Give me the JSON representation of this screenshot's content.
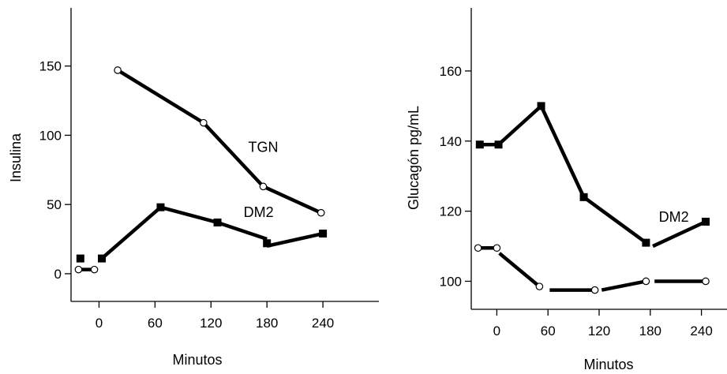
{
  "chart_data": [
    {
      "type": "line",
      "ylabel": "Insulina",
      "xlabel": "Minutos",
      "x_ticks": [
        0,
        60,
        120,
        180,
        240
      ],
      "y_ticks": [
        0,
        50,
        100,
        150
      ],
      "xlim": [
        -30,
        300
      ],
      "ylim": [
        -20,
        192
      ],
      "annotations": [
        {
          "text": "TGN",
          "x": 160,
          "y": 88
        },
        {
          "text": "DM2",
          "x": 155,
          "y": 41
        }
      ],
      "series": [
        {
          "marker": "circle-open",
          "segments": [
            [
              [
                -22,
                3
              ],
              [
                -5,
                3
              ]
            ],
            [
              [
                20,
                147
              ],
              [
                112,
                109
              ]
            ],
            [
              [
                112,
                109
              ],
              [
                176,
                63
              ]
            ],
            [
              [
                176,
                63
              ],
              [
                238,
                44
              ]
            ]
          ],
          "points": [
            [
              -22,
              3
            ],
            [
              -5,
              3
            ],
            [
              20,
              147
            ],
            [
              112,
              109
            ],
            [
              176,
              63
            ],
            [
              238,
              44
            ]
          ]
        },
        {
          "marker": "square-filled",
          "segments": [
            [
              [
                -20,
                11
              ],
              [
                -20,
                11
              ]
            ],
            [
              [
                3,
                11
              ],
              [
                66,
                48
              ]
            ],
            [
              [
                66,
                48
              ],
              [
                127,
                37
              ]
            ],
            [
              [
                127,
                37
              ],
              [
                180,
                25
              ]
            ],
            [
              [
                180,
                20
              ],
              [
                240,
                29
              ]
            ]
          ],
          "points": [
            [
              -20,
              11
            ],
            [
              3,
              11
            ],
            [
              66,
              48
            ],
            [
              127,
              37
            ],
            [
              180,
              22
            ],
            [
              240,
              29
            ]
          ]
        }
      ]
    },
    {
      "type": "line",
      "ylabel": "Glucagón pg/mL",
      "xlabel": "Minutos",
      "x_ticks": [
        0,
        60,
        120,
        180,
        240
      ],
      "y_ticks": [
        100,
        120,
        140,
        160
      ],
      "xlim": [
        -30,
        270
      ],
      "ylim": [
        92,
        178
      ],
      "annotations": [
        {
          "text": "DM2",
          "x": 190,
          "y": 117
        }
      ],
      "series": [
        {
          "marker": "circle-open",
          "segments": [
            [
              [
                -22,
                109.5
              ],
              [
                0,
                109.5
              ]
            ],
            [
              [
                3,
                108
              ],
              [
                50,
                98.5
              ]
            ],
            [
              [
                62,
                97.5
              ],
              [
                115,
                97.5
              ]
            ],
            [
              [
                123,
                97.5
              ],
              [
                175,
                100
              ]
            ],
            [
              [
                185,
                100
              ],
              [
                245,
                100
              ]
            ]
          ],
          "points": [
            [
              -22,
              109.5
            ],
            [
              0,
              109.5
            ],
            [
              50,
              98.5
            ],
            [
              115,
              97.5
            ],
            [
              175,
              100
            ],
            [
              245,
              100
            ]
          ]
        },
        {
          "marker": "square-filled",
          "segments": [
            [
              [
                -20,
                139
              ],
              [
                2,
                139
              ]
            ],
            [
              [
                2,
                139
              ],
              [
                52,
                150
              ]
            ],
            [
              [
                52,
                150
              ],
              [
                102,
                124
              ]
            ],
            [
              [
                102,
                124
              ],
              [
                175,
                111
              ]
            ],
            [
              [
                183,
                110
              ],
              [
                245,
                117
              ]
            ]
          ],
          "points": [
            [
              -20,
              139
            ],
            [
              2,
              139
            ],
            [
              52,
              150
            ],
            [
              102,
              124
            ],
            [
              175,
              111
            ],
            [
              245,
              117
            ]
          ]
        }
      ]
    }
  ]
}
